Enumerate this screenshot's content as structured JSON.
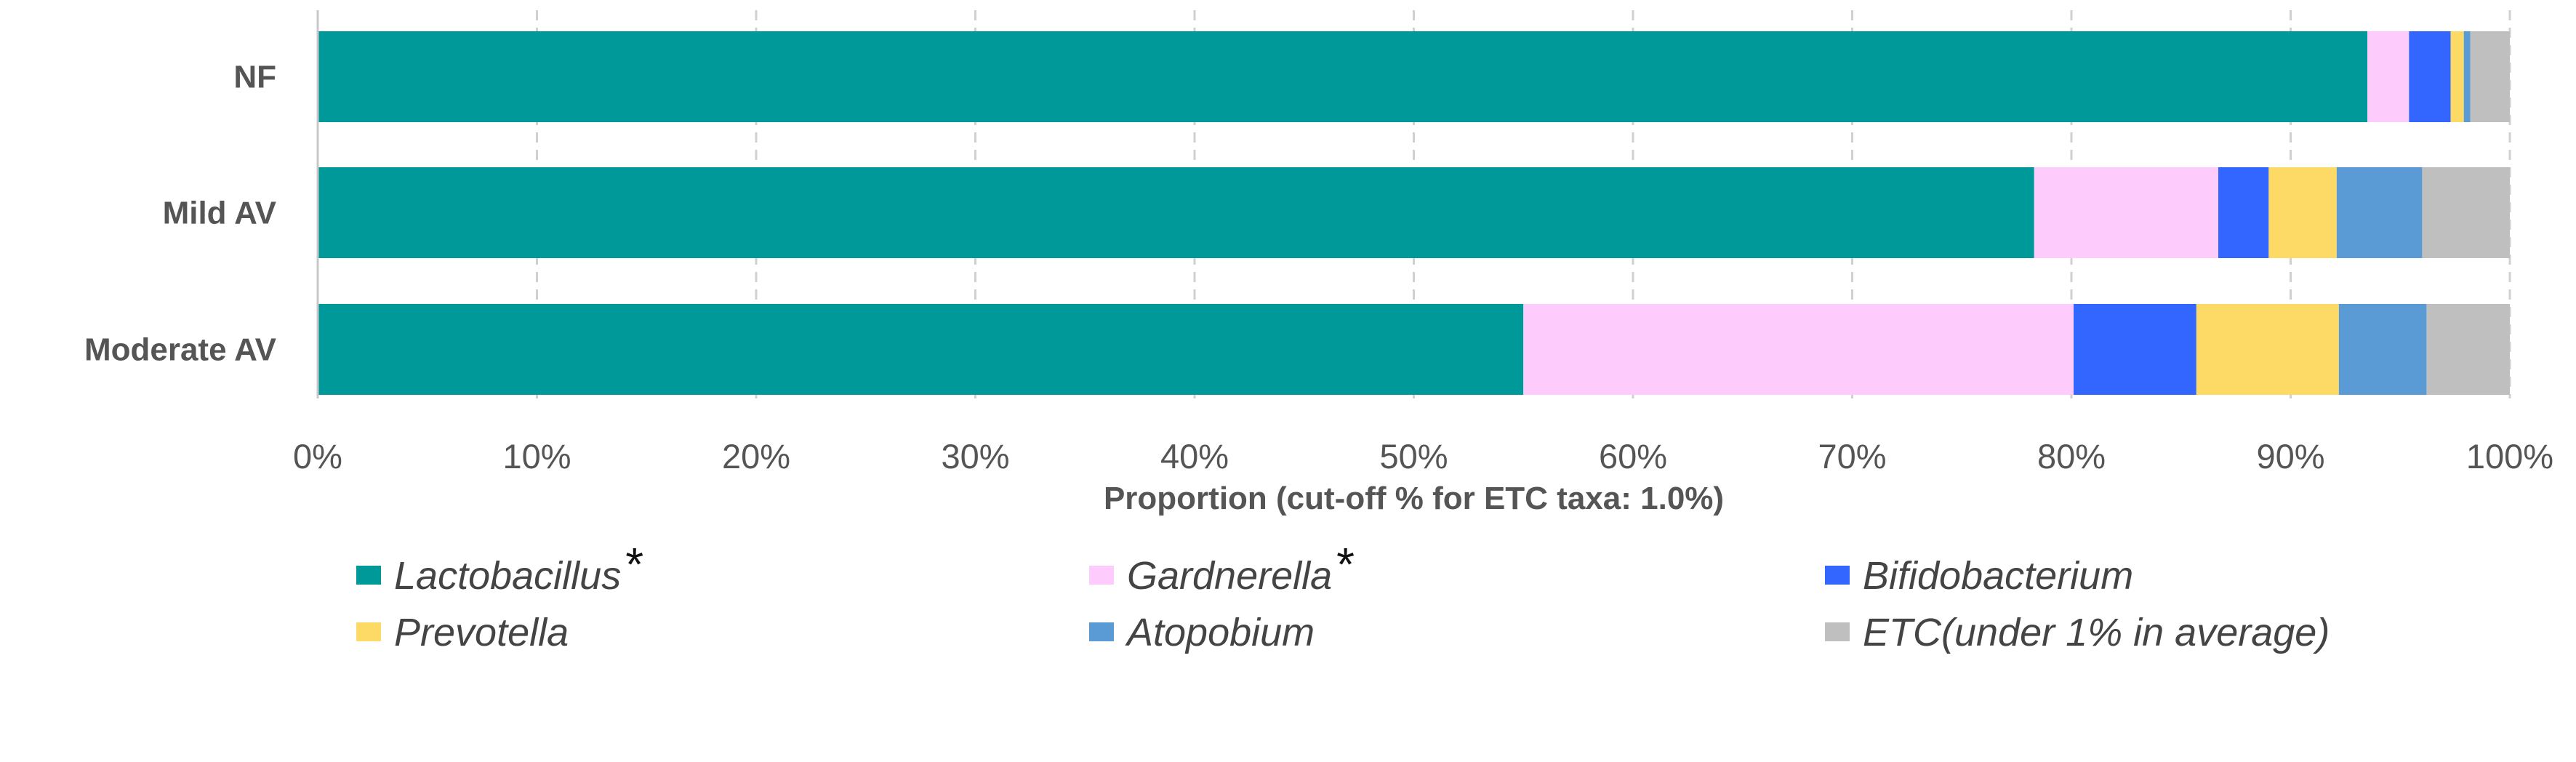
{
  "chart_data": {
    "type": "bar",
    "orientation": "horizontal",
    "stacked": true,
    "categories": [
      "NF",
      "Mild AV",
      "Moderate AV"
    ],
    "series": [
      {
        "name": "Lactobacillus",
        "marker": "*",
        "color": "#00999A",
        "values": [
          93.5,
          78.3,
          55.0
        ]
      },
      {
        "name": "Gardnerella",
        "marker": "*",
        "color": "#FDCCFD",
        "values": [
          1.9,
          8.4,
          25.1
        ]
      },
      {
        "name": "Bifidobacterium",
        "marker": "",
        "color": "#3366FF",
        "values": [
          1.9,
          2.3,
          5.6
        ]
      },
      {
        "name": "Prevotella",
        "marker": "",
        "color": "#FDD966",
        "values": [
          0.6,
          3.1,
          6.5
        ]
      },
      {
        "name": "Atopobium",
        "marker": "",
        "color": "#5B9BD5",
        "values": [
          0.3,
          3.9,
          4.0
        ]
      },
      {
        "name": "ETC(under 1% in average)",
        "marker": "",
        "color": "#BFBFBF",
        "values": [
          1.8,
          4.0,
          3.8
        ]
      }
    ],
    "xlabel": "Proportion (cut-off % for ETC taxa: 1.0%)",
    "xlim": [
      0,
      100
    ],
    "xticks": [
      "0%",
      "10%",
      "20%",
      "30%",
      "40%",
      "50%",
      "60%",
      "70%",
      "80%",
      "90%",
      "100%"
    ],
    "grid": "vertical dashed",
    "legend_position": "bottom"
  }
}
